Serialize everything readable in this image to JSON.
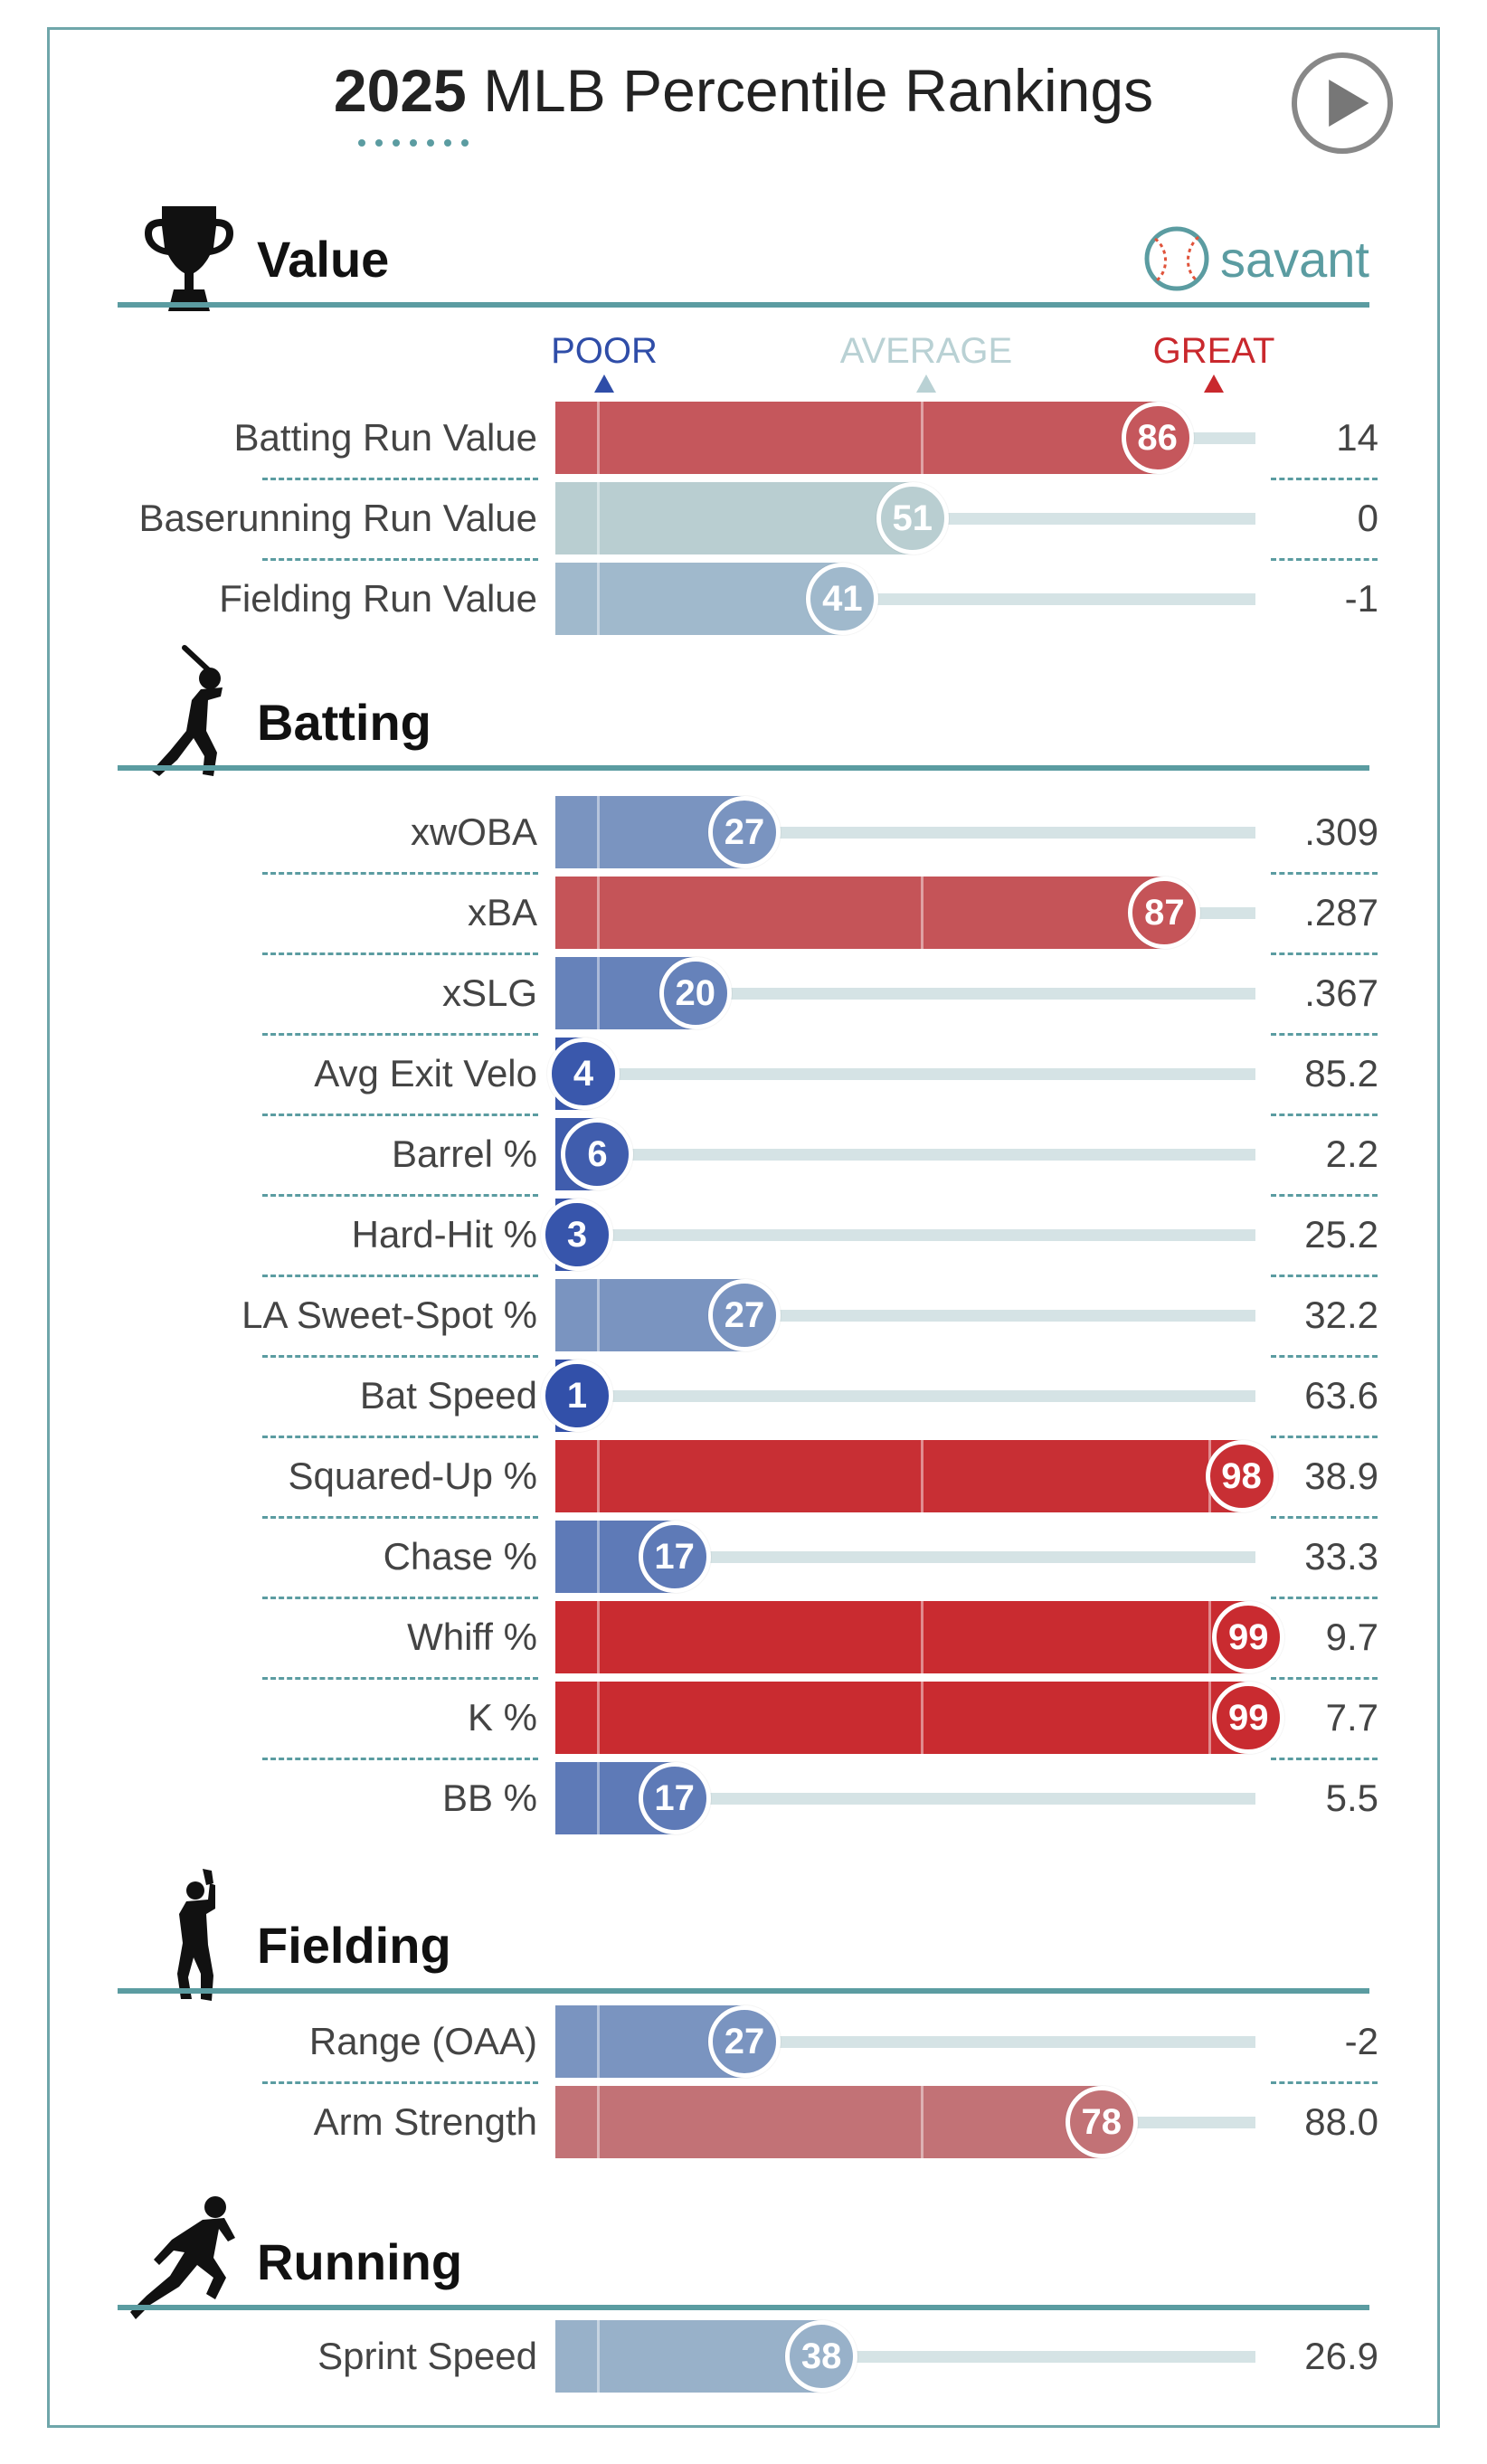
{
  "header": {
    "year": "2025",
    "title_rest": " MLB Percentile Rankings"
  },
  "brand": {
    "name": "savant",
    "color": "#5b9ca1"
  },
  "scale": {
    "poor": "POOR",
    "average": "AVERAGE",
    "great": "GREAT",
    "colors": {
      "poor": "#2f4da8",
      "average": "#b9d1d4",
      "great": "#c9282d"
    }
  },
  "icons": {
    "play": "play-icon",
    "value": "trophy-icon",
    "batting": "batter-icon",
    "fielding": "fielder-icon",
    "running": "runner-icon",
    "brand": "baseball-icon"
  },
  "chart_data": {
    "type": "bar",
    "title": "2025 MLB Percentile Rankings",
    "xlim": [
      0,
      100
    ],
    "sections": [
      {
        "name": "Value",
        "metrics": [
          {
            "label": "Batting Run Value",
            "percentile": 86,
            "value": "14"
          },
          {
            "label": "Baserunning Run Value",
            "percentile": 51,
            "value": "0"
          },
          {
            "label": "Fielding Run Value",
            "percentile": 41,
            "value": "-1"
          }
        ]
      },
      {
        "name": "Batting",
        "metrics": [
          {
            "label": "xwOBA",
            "percentile": 27,
            "value": ".309"
          },
          {
            "label": "xBA",
            "percentile": 87,
            "value": ".287"
          },
          {
            "label": "xSLG",
            "percentile": 20,
            "value": ".367"
          },
          {
            "label": "Avg Exit Velo",
            "percentile": 4,
            "value": "85.2"
          },
          {
            "label": "Barrel %",
            "percentile": 6,
            "value": "2.2"
          },
          {
            "label": "Hard-Hit %",
            "percentile": 3,
            "value": "25.2"
          },
          {
            "label": "LA Sweet-Spot %",
            "percentile": 27,
            "value": "32.2"
          },
          {
            "label": "Bat Speed",
            "percentile": 1,
            "value": "63.6"
          },
          {
            "label": "Squared-Up %",
            "percentile": 98,
            "value": "38.9"
          },
          {
            "label": "Chase %",
            "percentile": 17,
            "value": "33.3"
          },
          {
            "label": "Whiff %",
            "percentile": 99,
            "value": "9.7"
          },
          {
            "label": "K %",
            "percentile": 99,
            "value": "7.7"
          },
          {
            "label": "BB %",
            "percentile": 17,
            "value": "5.5"
          }
        ]
      },
      {
        "name": "Fielding",
        "metrics": [
          {
            "label": "Range (OAA)",
            "percentile": 27,
            "value": "-2"
          },
          {
            "label": "Arm Strength",
            "percentile": 78,
            "value": "88.0"
          }
        ]
      },
      {
        "name": "Running",
        "metrics": [
          {
            "label": "Sprint Speed",
            "percentile": 38,
            "value": "26.9"
          }
        ]
      }
    ]
  }
}
